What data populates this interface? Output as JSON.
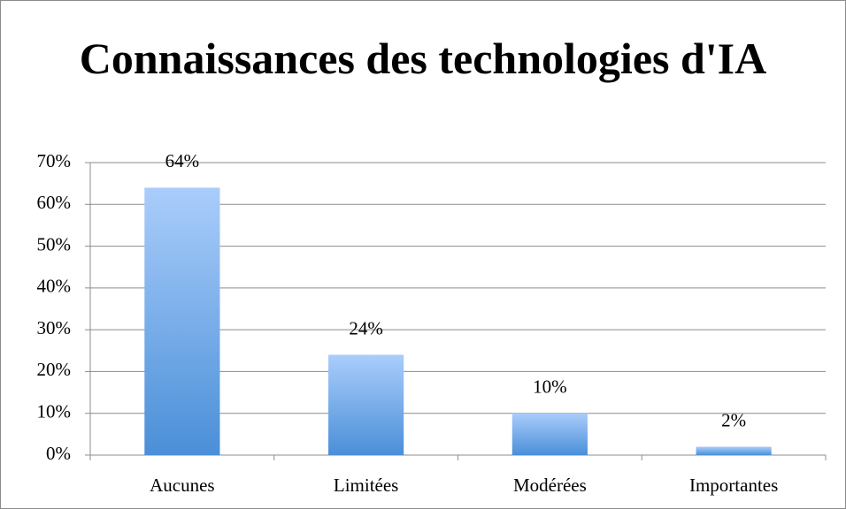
{
  "chart_data": {
    "type": "bar",
    "title": "Connaissances des technologies d'IA",
    "categories": [
      "Aucunes",
      "Limitées",
      "Modérées",
      "Importantes"
    ],
    "values": [
      64,
      24,
      10,
      2
    ],
    "value_labels": [
      "64%",
      "24%",
      "10%",
      "2%"
    ],
    "color": "#4a8fd8",
    "ylim": [
      0,
      70
    ],
    "yticks": [
      {
        "value": 0,
        "label": "0%"
      },
      {
        "value": 10,
        "label": "10%"
      },
      {
        "value": 20,
        "label": "20%"
      },
      {
        "value": 30,
        "label": "30%"
      },
      {
        "value": 40,
        "label": "40%"
      },
      {
        "value": 50,
        "label": "50%"
      },
      {
        "value": 60,
        "label": "60%"
      },
      {
        "value": 70,
        "label": "70%"
      }
    ],
    "grid": true
  }
}
